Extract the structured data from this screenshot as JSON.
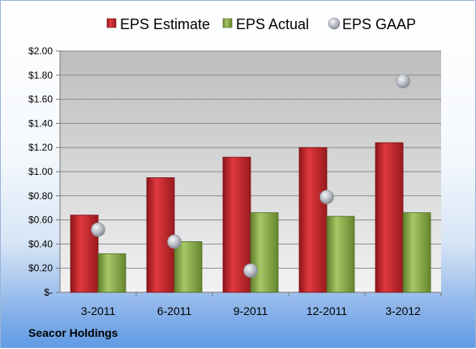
{
  "footer": {
    "company": "Seacor Holdings"
  },
  "chart_data": {
    "type": "bar",
    "categories": [
      "3-2011",
      "6-2011",
      "9-2011",
      "12-2011",
      "3-2012"
    ],
    "series": [
      {
        "name": "EPS Estimate",
        "type": "bar",
        "values": [
          0.64,
          0.95,
          1.12,
          1.2,
          1.24
        ],
        "color": "#c0272d"
      },
      {
        "name": "EPS Actual",
        "type": "bar",
        "values": [
          0.32,
          0.42,
          0.66,
          0.63,
          0.66
        ],
        "color": "#8db04a"
      },
      {
        "name": "EPS GAAP",
        "type": "scatter",
        "values": [
          0.52,
          0.42,
          0.18,
          0.79,
          1.75
        ],
        "color": "#b8bcc4"
      }
    ],
    "ylim": [
      0,
      2.0
    ],
    "yticks": [
      0,
      0.2,
      0.4,
      0.6,
      0.8,
      1.0,
      1.2,
      1.4,
      1.6,
      1.8,
      2.0
    ],
    "ytick_labels": [
      "$-",
      "$0.20",
      "$0.40",
      "$0.60",
      "$0.80",
      "$1.00",
      "$1.20",
      "$1.40",
      "$1.60",
      "$1.80",
      "$2.00"
    ],
    "grid": true,
    "legend": "top"
  }
}
